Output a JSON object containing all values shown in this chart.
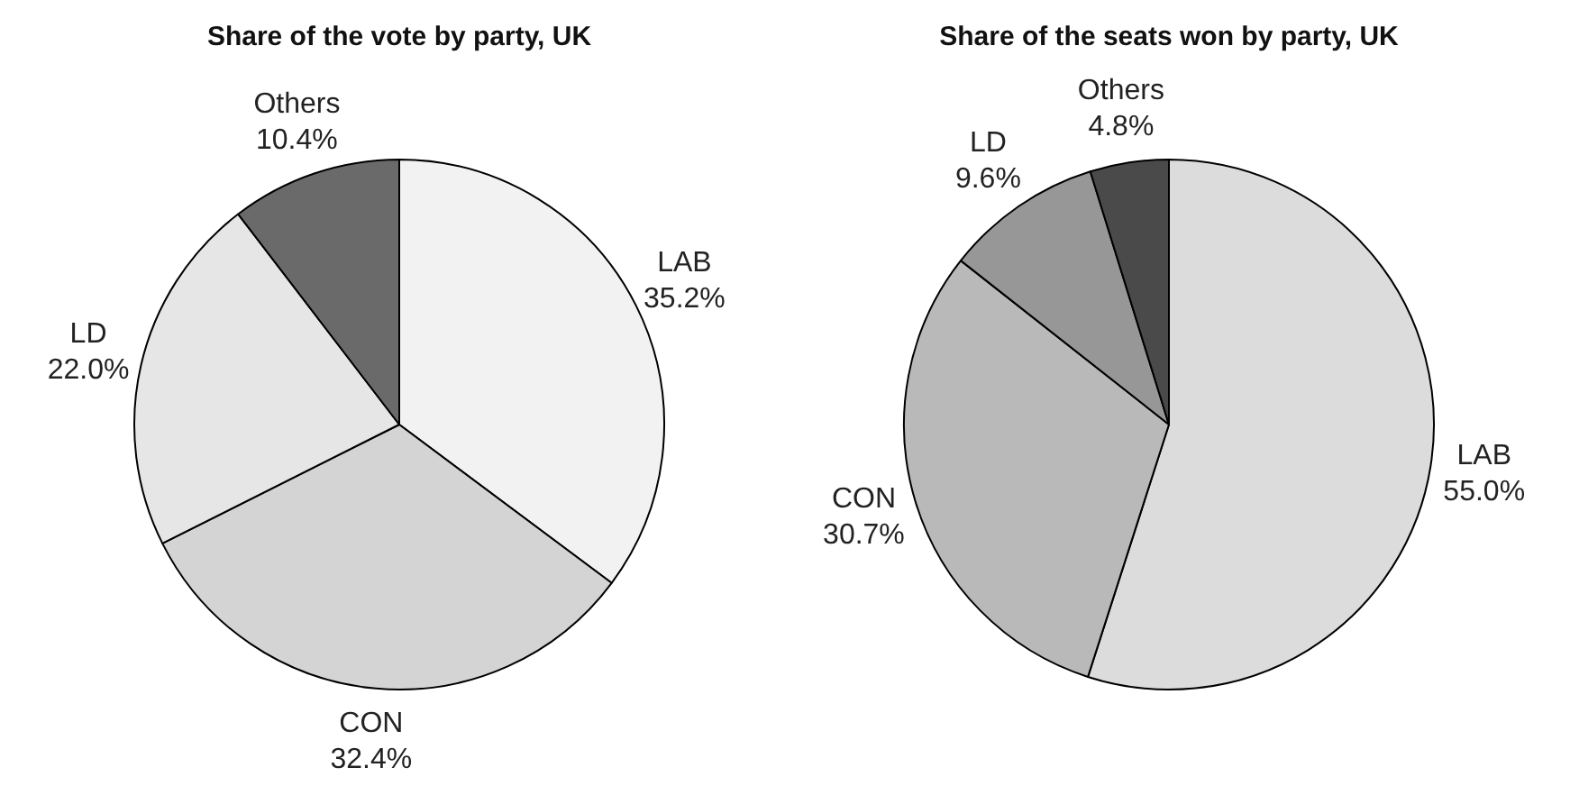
{
  "chart_data": [
    {
      "type": "pie",
      "title": "Share of the vote by party, UK",
      "categories": [
        "LAB",
        "CON",
        "LD",
        "Others"
      ],
      "values": [
        35.2,
        32.4,
        22.0,
        10.4
      ],
      "value_labels": [
        "35.2%",
        "32.4%",
        "22.0%",
        "10.4%"
      ],
      "colors": [
        "#f2f2f2",
        "#d4d4d4",
        "#e6e6e6",
        "#6a6a6a"
      ],
      "legend": false
    },
    {
      "type": "pie",
      "title": "Share of the seats won by party, UK",
      "categories": [
        "LAB",
        "CON",
        "LD",
        "Others"
      ],
      "values": [
        55.0,
        30.7,
        9.6,
        4.8
      ],
      "value_labels": [
        "55.0%",
        "30.7%",
        "9.6%",
        "4.8%"
      ],
      "colors": [
        "#dcdcdc",
        "#b9b9b9",
        "#979797",
        "#4a4a4a"
      ],
      "legend": false
    }
  ]
}
